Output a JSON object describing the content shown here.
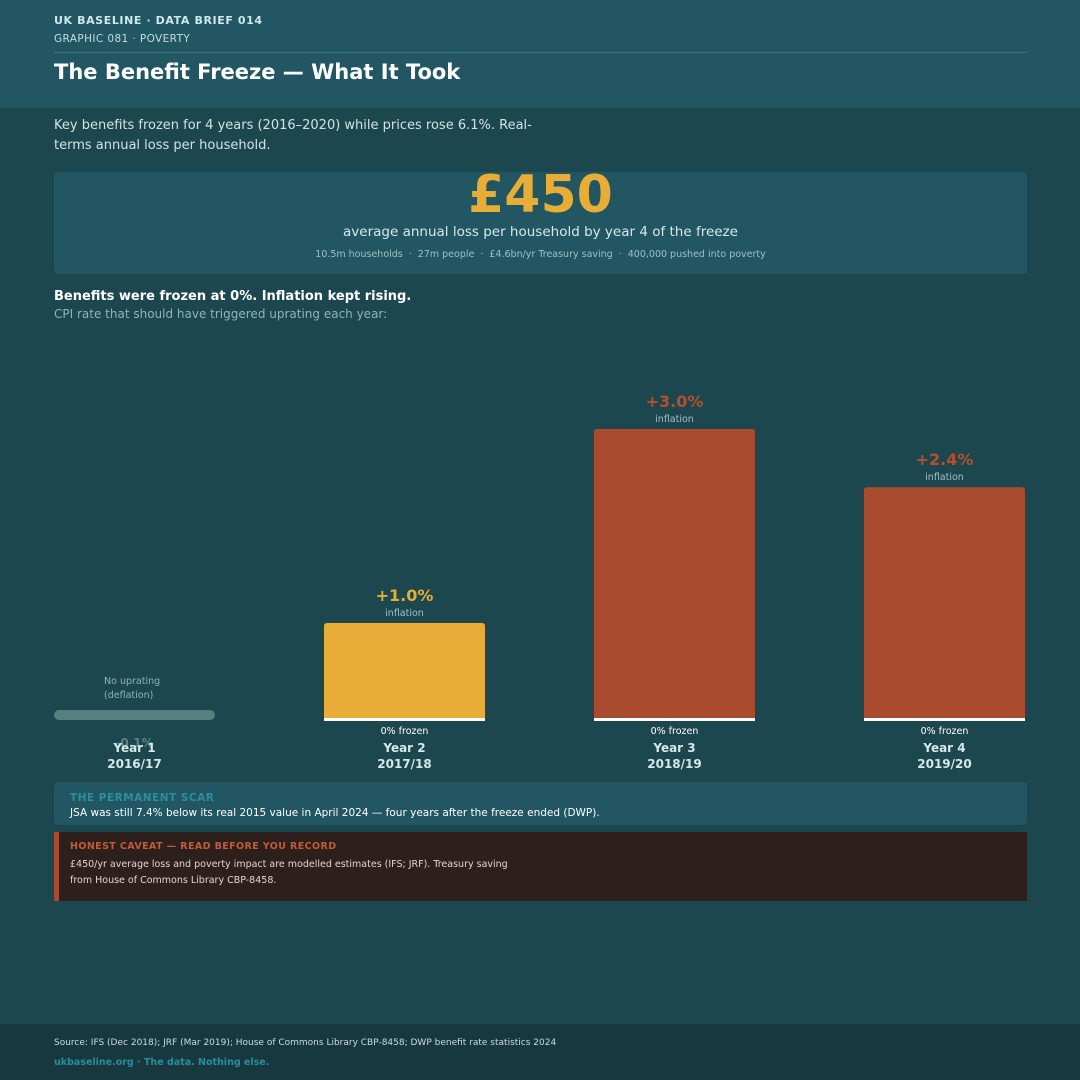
{
  "header": {
    "kicker": "UK BASELINE  ·  DATA BRIEF 014",
    "subkicker": "GRAPHIC 081  ·  POVERTY",
    "title": "The Benefit Freeze — What It Took"
  },
  "intro": "Key benefits frozen for 4 years (2016–2020) while prices rose 6.1%. Real-terms annual loss per household.",
  "hero": {
    "figure": "£450",
    "caption": "average annual loss per household by year 4 of the freeze",
    "stats": [
      "10.5m households",
      "27m people",
      "£4.6bn/yr Treasury saving",
      "400,000 pushed into poverty"
    ]
  },
  "chart_section": {
    "heading": "Benefits were frozen at 0%. Inflation kept rising.",
    "subheading": "CPI rate that should have triggered uprating each year:"
  },
  "chart_data": {
    "type": "bar",
    "title": "",
    "ylabel": "",
    "xlabel": "",
    "ylim": [
      0,
      3.0
    ],
    "categories": [
      {
        "year": "Year 1",
        "period": "2016/17"
      },
      {
        "year": "Year 2",
        "period": "2017/18"
      },
      {
        "year": "Year 3",
        "period": "2018/19"
      },
      {
        "year": "Year 4",
        "period": "2019/20"
      }
    ],
    "values": [
      -0.1,
      1.0,
      3.0,
      2.4
    ],
    "value_labels": [
      "-0.1%",
      "+1.0%",
      "+3.0%",
      "+2.4%"
    ],
    "sublabels": [
      "No uprating\n(deflation)",
      "inflation",
      "inflation",
      "inflation"
    ],
    "baseline_labels": [
      "",
      "0% frozen",
      "0% frozen",
      "0% frozen"
    ],
    "colors": [
      "#56807f",
      "#e8ad36",
      "#a94b2e",
      "#a94b2e"
    ],
    "label_colors": [
      "#5d8585",
      "#e8ad36",
      "#b5502f",
      "#b5502f"
    ]
  },
  "scar": {
    "label": "THE PERMANENT SCAR",
    "text": "JSA was still 7.4% below its real 2015 value in April 2024 — four years after the freeze ended (DWP)."
  },
  "caveat": {
    "label": "HONEST CAVEAT — READ BEFORE YOU RECORD",
    "text": "£450/yr average loss and poverty impact are modelled estimates (IFS; JRF). Treasury saving from House of Commons Library CBP-8458."
  },
  "footer": {
    "source": "Source: IFS (Dec 2018); JRF (Mar 2019); House of Commons Library CBP-8458; DWP benefit rate statistics 2024",
    "brand": "ukbaseline.org  ·  The data. Nothing else."
  },
  "colors": {
    "background": "#1d474e",
    "panel": "#215662",
    "accent_gold": "#e8ad36",
    "accent_rust": "#a94b2e",
    "caveat_bg": "#2c1f1c"
  }
}
